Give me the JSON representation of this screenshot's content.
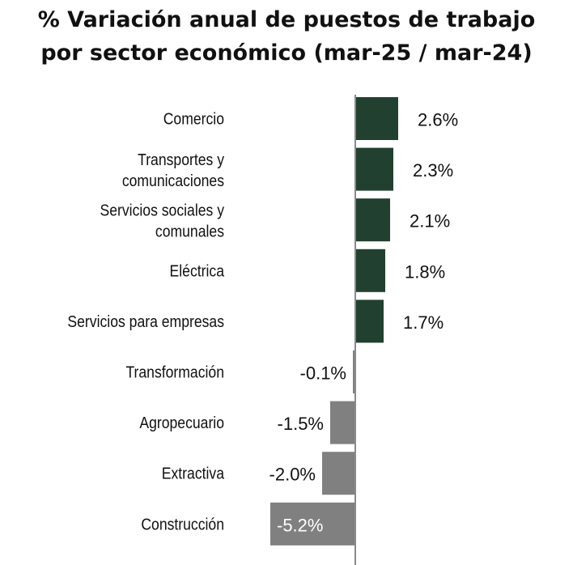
{
  "chart_data": {
    "type": "bar",
    "orientation": "horizontal",
    "title_lines": [
      "% Variación anual de puestos de trabajo",
      "por sector económico (mar-25 / mar-24)"
    ],
    "categories": [
      [
        "Comercio"
      ],
      [
        "Transportes y",
        "comunicaciones"
      ],
      [
        "Servicios sociales y",
        "comunales"
      ],
      [
        "Eléctrica"
      ],
      [
        "Servicios para empresas"
      ],
      [
        "Transformación"
      ],
      [
        "Agropecuario"
      ],
      [
        "Extractiva"
      ],
      [
        "Construcción"
      ]
    ],
    "values": [
      2.6,
      2.3,
      2.1,
      1.8,
      1.7,
      -0.1,
      -1.5,
      -2.0,
      -5.2
    ],
    "value_labels": [
      "2.6%",
      "2.3%",
      "2.1%",
      "1.8%",
      "1.7%",
      "-0.1%",
      "-1.5%",
      "-2.0%",
      "-5.2%"
    ],
    "unit": "%",
    "colors": {
      "positive": "#22402f",
      "negative": "#808080",
      "axis": "#8a8a8a"
    },
    "grid": false
  }
}
